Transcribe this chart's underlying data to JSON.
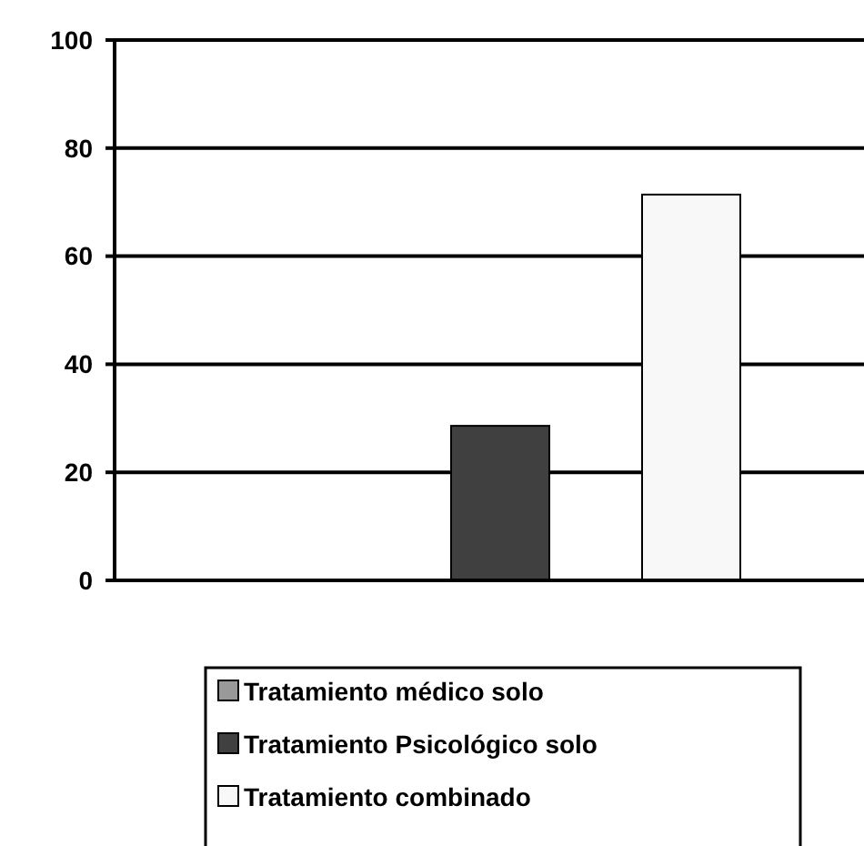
{
  "chart_data": {
    "type": "bar",
    "categories": [
      null
    ],
    "series": [
      {
        "name": "Tratamiento médico solo",
        "color": "#999999",
        "values": [
          0
        ]
      },
      {
        "name": "Tratamiento Psicológico solo",
        "color": "#404040",
        "values": [
          28.6
        ]
      },
      {
        "name": "Tratamiento combinado",
        "color": "#f8f8f8",
        "values": [
          71.4
        ]
      }
    ],
    "ylim": [
      0,
      100
    ],
    "yticks": [
      0,
      20,
      40,
      60,
      80,
      100
    ],
    "grid": "y",
    "legend": "bottom"
  }
}
